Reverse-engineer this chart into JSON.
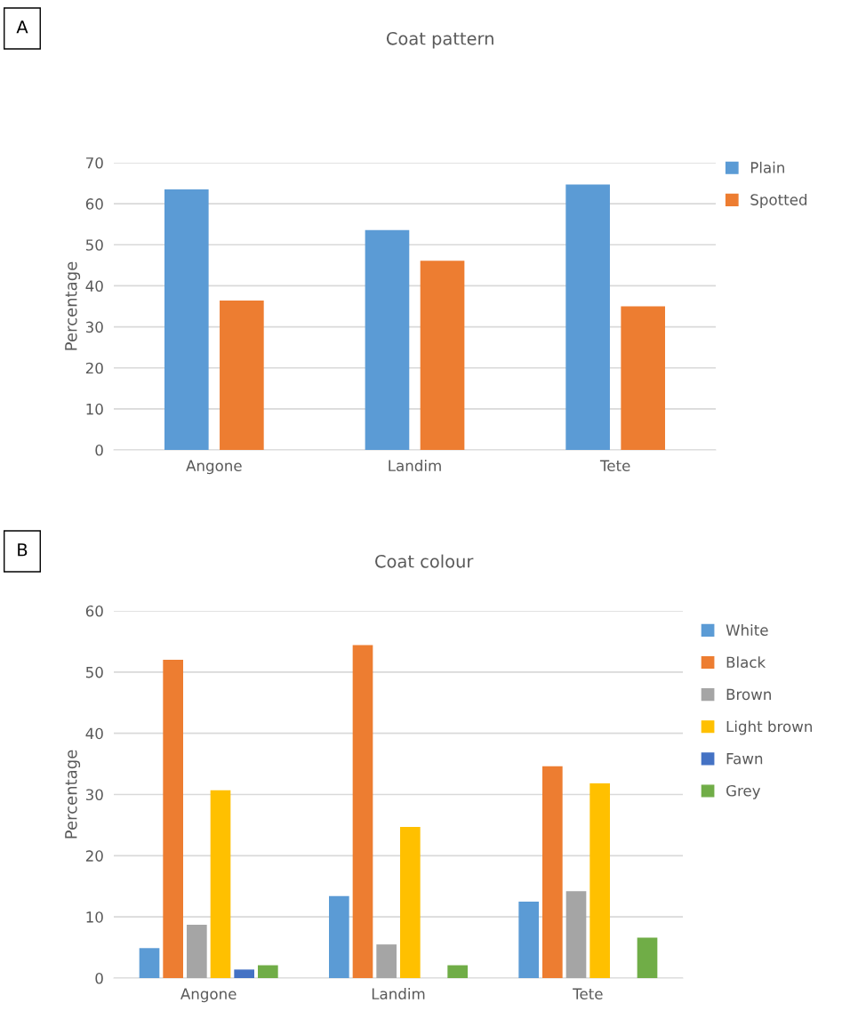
{
  "chart_data": [
    {
      "type": "bar",
      "title": "Coat pattern",
      "ylabel": "Percentage",
      "categories": [
        "Angone",
        "Landim",
        "Tete"
      ],
      "series": [
        {
          "name": "Plain",
          "color": "#5b9bd5",
          "values": [
            63.5,
            53.6,
            64.7
          ]
        },
        {
          "name": "Spotted",
          "color": "#ed7d31",
          "values": [
            36.4,
            46.1,
            35.0
          ]
        }
      ],
      "ylim": [
        0,
        70
      ],
      "yticks": [
        0,
        10,
        20,
        30,
        40,
        50,
        60,
        70
      ],
      "grid": "y",
      "legend": "top right",
      "annotations": [
        "A"
      ]
    },
    {
      "type": "bar",
      "title": "Coat colour",
      "ylabel": "Percentage",
      "categories": [
        "Angone",
        "Landim",
        "Tete"
      ],
      "series": [
        {
          "name": "White",
          "color": "#5b9bd5",
          "values": [
            4.9,
            13.4,
            12.5
          ]
        },
        {
          "name": "Black",
          "color": "#ed7d31",
          "values": [
            52.0,
            54.4,
            34.6
          ]
        },
        {
          "name": "Brown",
          "color": "#a5a5a5",
          "values": [
            8.7,
            5.5,
            14.2
          ]
        },
        {
          "name": "Light brown",
          "color": "#ffc000",
          "values": [
            30.7,
            24.7,
            31.8
          ]
        },
        {
          "name": "Fawn",
          "color": "#4472c4",
          "values": [
            1.4,
            0,
            0
          ]
        },
        {
          "name": "Grey",
          "color": "#70ad47",
          "values": [
            2.1,
            2.1,
            6.6
          ]
        }
      ],
      "ylim": [
        0,
        60
      ],
      "yticks": [
        0,
        10,
        20,
        30,
        40,
        50,
        60
      ],
      "grid": "y",
      "legend": "right",
      "annotations": [
        "B"
      ]
    }
  ]
}
